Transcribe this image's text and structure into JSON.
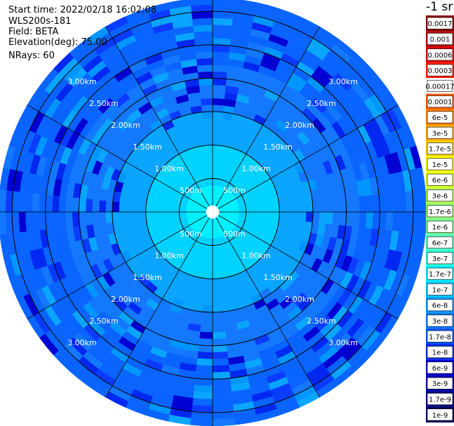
{
  "header": {
    "start_time_label": "Start time:",
    "start_time": "2022/02/18 16:02:08",
    "instrument": "WLS200s-181",
    "field_label": "Field:",
    "field": "BETA",
    "elevation_label": "Elevation(deg):",
    "elevation": "75.00",
    "nrays_label": "NRays:",
    "nrays": "60"
  },
  "colorbar": {
    "units": "-1 sr",
    "levels": [
      {
        "label": "0.0017",
        "color": "#8b0000"
      },
      {
        "label": "0.001",
        "color": "#b40000"
      },
      {
        "label": "0.0006",
        "color": "#dc0000"
      },
      {
        "label": "0.0003",
        "color": "#ff1e00"
      },
      {
        "label": "0.00017",
        "color": "#ffffff"
      },
      {
        "label": "0.0001",
        "color": "#ff5a00"
      },
      {
        "label": "6e-5",
        "color": "#ff8200"
      },
      {
        "label": "3e-5",
        "color": "#ffaa00"
      },
      {
        "label": "1.7e-5",
        "color": "#ffd200"
      },
      {
        "label": "1e-5",
        "color": "#ffff00"
      },
      {
        "label": "6e-6",
        "color": "#e1ff1e"
      },
      {
        "label": "3e-6",
        "color": "#b4ff4b"
      },
      {
        "label": "1.7e-6",
        "color": "#96ff6e"
      },
      {
        "label": "1e-6",
        "color": "#78ff96"
      },
      {
        "label": "6e-7",
        "color": "#50ffbe"
      },
      {
        "label": "3e-7",
        "color": "#28ffdc"
      },
      {
        "label": "1.7e-7",
        "color": "#00f5ff"
      },
      {
        "label": "1e-7",
        "color": "#00c8ff"
      },
      {
        "label": "6e-8",
        "color": "#0096ff"
      },
      {
        "label": "3e-8",
        "color": "#1478ff"
      },
      {
        "label": "1.7e-8",
        "color": "#0050ff"
      },
      {
        "label": "1e-8",
        "color": "#0028f0"
      },
      {
        "label": "6e-9",
        "color": "#0000d2"
      },
      {
        "label": "3e-9",
        "color": "#0000aa"
      },
      {
        "label": "1.7e-9",
        "color": "#000082"
      },
      {
        "label": "1e-9",
        "color": "#00005a"
      }
    ]
  },
  "chart_data": {
    "type": "heatmap",
    "projection": "polar-ppi",
    "rays": 60,
    "max_range_km": 3.2,
    "range_rings_km": [
      0.5,
      1.0,
      1.5,
      2.0,
      2.5,
      3.0
    ],
    "ring_labels": [
      "500m",
      "1.00km",
      "1.50km",
      "2.00km",
      "2.50km",
      "3.00km"
    ],
    "azimuth_spokes_deg": [
      0,
      30,
      60,
      90,
      120,
      150,
      180,
      210,
      240,
      270,
      300,
      330
    ],
    "bands": [
      {
        "from_km": 0.0,
        "to_km": 0.1,
        "level": "none",
        "color": "#ffffff"
      },
      {
        "from_km": 0.1,
        "to_km": 0.4,
        "level": "1e-7",
        "color": "#00f0ff"
      },
      {
        "from_km": 0.4,
        "to_km": 1.0,
        "level": "1e-7",
        "color": "#00d2ff"
      },
      {
        "from_km": 1.0,
        "to_km": 1.5,
        "level": "6e-8",
        "color": "#0aa5ff"
      },
      {
        "from_km": 1.5,
        "to_km": 2.2,
        "level": "3e-8",
        "color": "#1478ff"
      },
      {
        "from_km": 2.2,
        "to_km": 3.2,
        "level": "1.7e-8",
        "color": "#0a64ff"
      }
    ]
  }
}
